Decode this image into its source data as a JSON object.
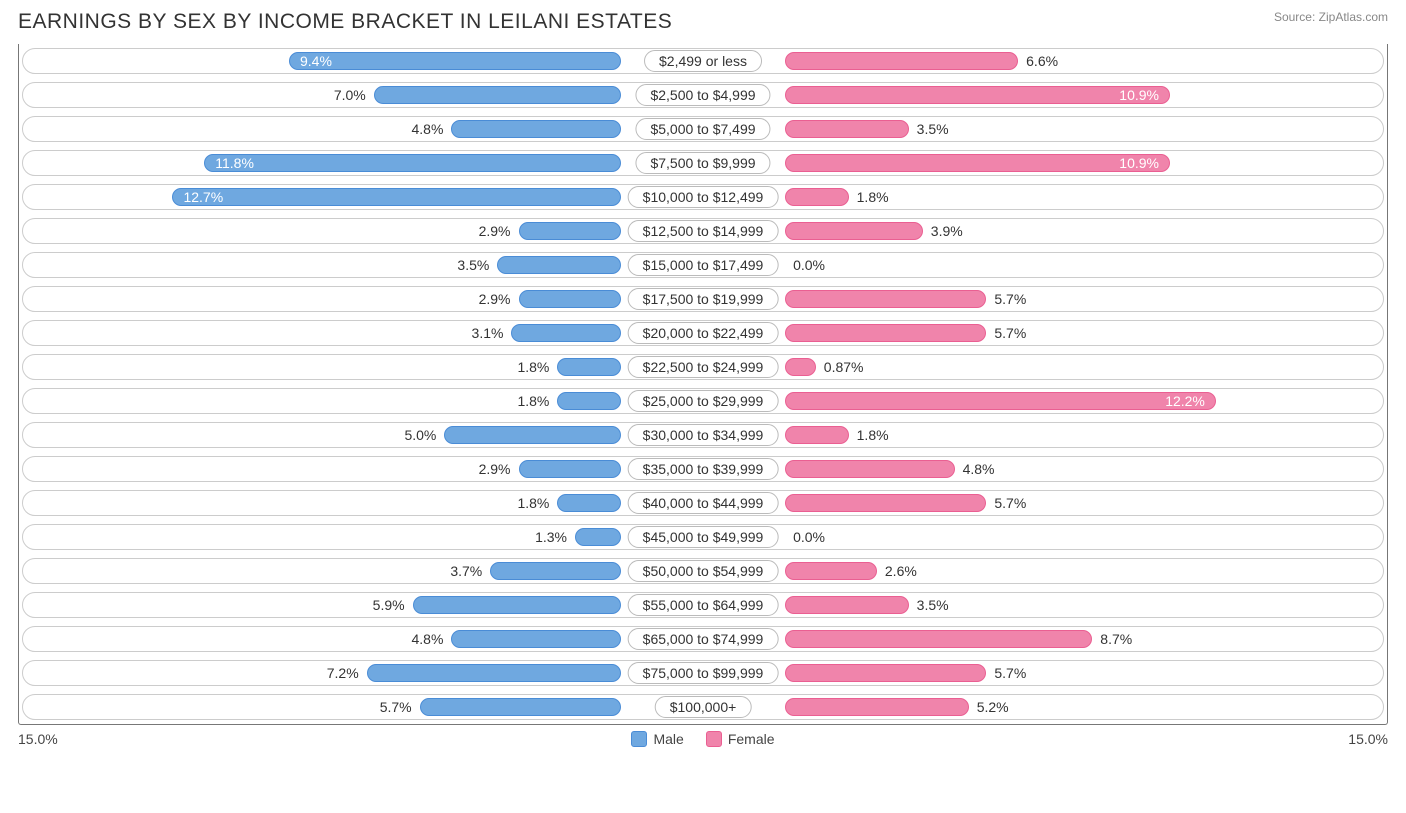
{
  "title": "EARNINGS BY SEX BY INCOME BRACKET IN LEILANI ESTATES",
  "source": "Source: ZipAtlas.com",
  "chart": {
    "type": "diverging-bar",
    "max_percent": 15.0,
    "axis_left_label": "15.0%",
    "axis_right_label": "15.0%",
    "male_color": "#6fa8e0",
    "male_border": "#4a8cd6",
    "female_color": "#f084ab",
    "female_border": "#ea5f92",
    "track_border": "#cccccc",
    "background": "#ffffff",
    "text_color": "#333333",
    "label_fontsize": 14,
    "title_fontsize": 21,
    "inside_threshold": 9.0,
    "legend": {
      "male": "Male",
      "female": "Female"
    },
    "rows": [
      {
        "category": "$2,499 or less",
        "male": 9.4,
        "male_label": "9.4%",
        "female": 6.6,
        "female_label": "6.6%"
      },
      {
        "category": "$2,500 to $4,999",
        "male": 7.0,
        "male_label": "7.0%",
        "female": 10.9,
        "female_label": "10.9%"
      },
      {
        "category": "$5,000 to $7,499",
        "male": 4.8,
        "male_label": "4.8%",
        "female": 3.5,
        "female_label": "3.5%"
      },
      {
        "category": "$7,500 to $9,999",
        "male": 11.8,
        "male_label": "11.8%",
        "female": 10.9,
        "female_label": "10.9%"
      },
      {
        "category": "$10,000 to $12,499",
        "male": 12.7,
        "male_label": "12.7%",
        "female": 1.8,
        "female_label": "1.8%"
      },
      {
        "category": "$12,500 to $14,999",
        "male": 2.9,
        "male_label": "2.9%",
        "female": 3.9,
        "female_label": "3.9%"
      },
      {
        "category": "$15,000 to $17,499",
        "male": 3.5,
        "male_label": "3.5%",
        "female": 0.0,
        "female_label": "0.0%"
      },
      {
        "category": "$17,500 to $19,999",
        "male": 2.9,
        "male_label": "2.9%",
        "female": 5.7,
        "female_label": "5.7%"
      },
      {
        "category": "$20,000 to $22,499",
        "male": 3.1,
        "male_label": "3.1%",
        "female": 5.7,
        "female_label": "5.7%"
      },
      {
        "category": "$22,500 to $24,999",
        "male": 1.8,
        "male_label": "1.8%",
        "female": 0.87,
        "female_label": "0.87%"
      },
      {
        "category": "$25,000 to $29,999",
        "male": 1.8,
        "male_label": "1.8%",
        "female": 12.2,
        "female_label": "12.2%"
      },
      {
        "category": "$30,000 to $34,999",
        "male": 5.0,
        "male_label": "5.0%",
        "female": 1.8,
        "female_label": "1.8%"
      },
      {
        "category": "$35,000 to $39,999",
        "male": 2.9,
        "male_label": "2.9%",
        "female": 4.8,
        "female_label": "4.8%"
      },
      {
        "category": "$40,000 to $44,999",
        "male": 1.8,
        "male_label": "1.8%",
        "female": 5.7,
        "female_label": "5.7%"
      },
      {
        "category": "$45,000 to $49,999",
        "male": 1.3,
        "male_label": "1.3%",
        "female": 0.0,
        "female_label": "0.0%"
      },
      {
        "category": "$50,000 to $54,999",
        "male": 3.7,
        "male_label": "3.7%",
        "female": 2.6,
        "female_label": "2.6%"
      },
      {
        "category": "$55,000 to $64,999",
        "male": 5.9,
        "male_label": "5.9%",
        "female": 3.5,
        "female_label": "3.5%"
      },
      {
        "category": "$65,000 to $74,999",
        "male": 4.8,
        "male_label": "4.8%",
        "female": 8.7,
        "female_label": "8.7%"
      },
      {
        "category": "$75,000 to $99,999",
        "male": 7.2,
        "male_label": "7.2%",
        "female": 5.7,
        "female_label": "5.7%"
      },
      {
        "category": "$100,000+",
        "male": 5.7,
        "male_label": "5.7%",
        "female": 5.2,
        "female_label": "5.2%"
      }
    ]
  }
}
